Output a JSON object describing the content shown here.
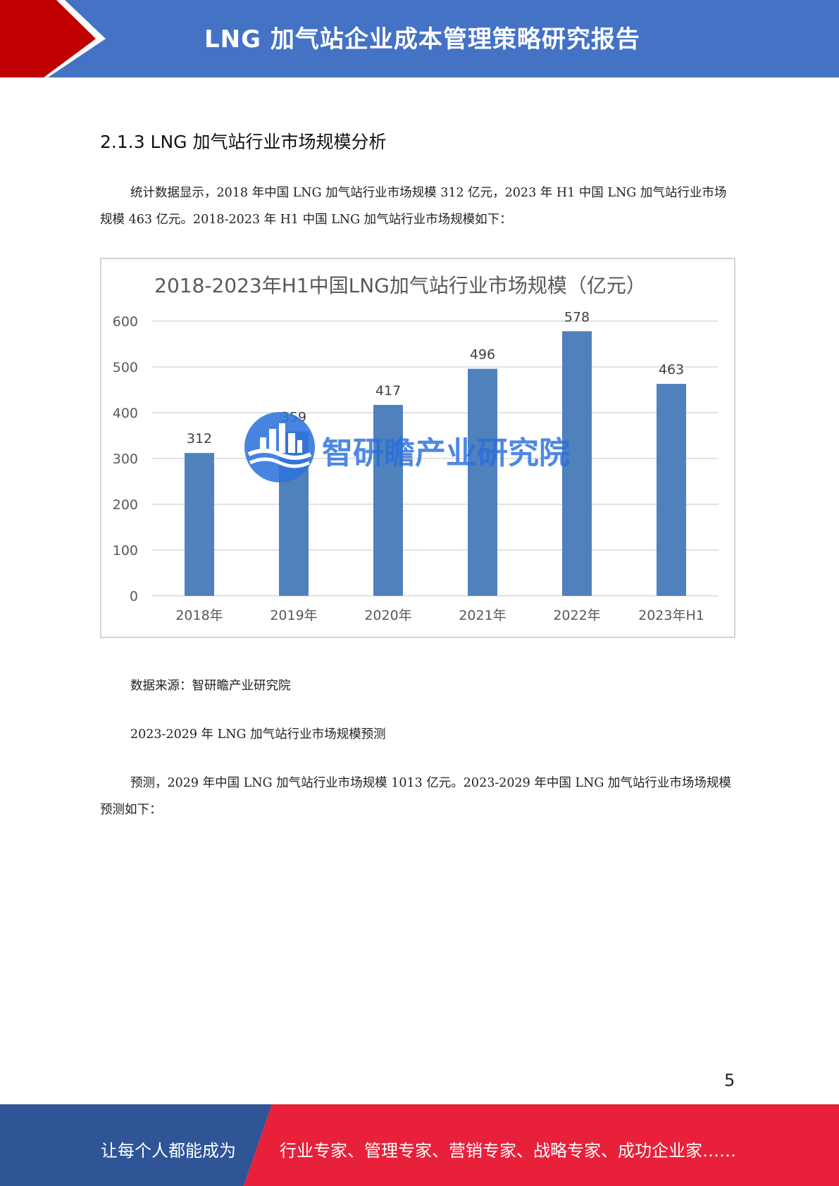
{
  "header": {
    "title": "LNG 加气站企业成本管理策略研究报告",
    "colors": {
      "blue": "#4472c4",
      "red": "#c00000"
    }
  },
  "section": {
    "heading": "2.1.3 LNG 加气站行业市场规模分析"
  },
  "paragraphs": {
    "intro": "统计数据显示，2018 年中国 LNG 加气站行业市场规模 312 亿元，2023 年 H1 中国 LNG 加气站行业市场规模 463 亿元。2018-2023 年 H1 中国 LNG 加气站行业市场规模如下：",
    "source": "数据来源：智研瞻产业研究院",
    "forecast_title": "2023-2029 年 LNG 加气站行业市场规模预测",
    "forecast": "预测，2029 年中国 LNG 加气站行业市场规模 1013 亿元。2023-2029 年中国 LNG 加气站行业市场场规模预测如下："
  },
  "chart_data": {
    "type": "bar",
    "title": "2018-2023年H1中国LNG加气站行业市场规模（亿元）",
    "categories": [
      "2018年",
      "2019年",
      "2020年",
      "2021年",
      "2022年",
      "2023年H1"
    ],
    "values": [
      312,
      359,
      417,
      496,
      578,
      463
    ],
    "data_labels": [
      "312",
      "359",
      "417",
      "496",
      "578",
      "463"
    ],
    "yticks": [
      "0",
      "100",
      "200",
      "300",
      "400",
      "500",
      "600"
    ],
    "ylim": [
      0,
      600
    ],
    "grid": true,
    "bar_color": "#4f81bd"
  },
  "watermark": {
    "text": "智研瞻产业研究院",
    "logo_icon": "city-skyline-wave-logo-icon"
  },
  "page_number": "5",
  "footer": {
    "left": "让每个人都能成为",
    "right": "行业专家、管理专家、营销专家、战略专家、成功企业家……",
    "colors": {
      "blue": "#2f5597",
      "red": "#e8203a"
    }
  }
}
